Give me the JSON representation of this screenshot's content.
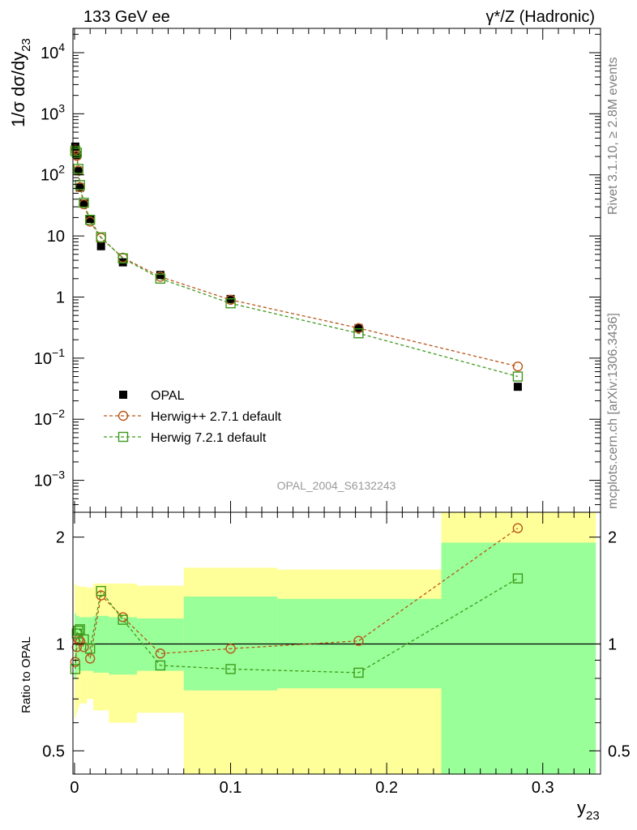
{
  "header": {
    "left": "133 GeV ee",
    "right": "γ*/Z (Hadronic)"
  },
  "side_labels": {
    "rivet": "Rivet 3.1.10, ≥ 2.8M events",
    "mcplots": "mcplots.cern.ch [arXiv:1306.3436]"
  },
  "colors": {
    "data": "#000000",
    "herwigpp": "#b8561a",
    "herwig7": "#3f9a1c",
    "band_yellow": "#ffff99",
    "band_green": "#99ff99"
  },
  "chart_data": [
    {
      "type": "scatter",
      "panel": "main",
      "ylabel": "1/σ dσ/dy23",
      "yscale": "log",
      "ylim": [
        0.0003,
        25000
      ],
      "xlim": [
        -0.001,
        0.337
      ],
      "watermark": "OPAL_2004_S6132243",
      "legend_position": "lower-left",
      "y_ticks": [
        {
          "v": 0.001,
          "base": "10",
          "exp": "−3"
        },
        {
          "v": 0.01,
          "base": "10",
          "exp": "−2"
        },
        {
          "v": 0.1,
          "base": "10",
          "exp": "−1"
        },
        {
          "v": 1,
          "base": "1",
          "exp": ""
        },
        {
          "v": 10,
          "base": "10",
          "exp": ""
        },
        {
          "v": 100,
          "base": "10",
          "exp": "2"
        },
        {
          "v": 1000,
          "base": "10",
          "exp": "3"
        },
        {
          "v": 10000,
          "base": "10",
          "exp": "4"
        }
      ],
      "series": [
        {
          "name": "OPAL",
          "style": "data",
          "x": [
            0.0005,
            0.0015,
            0.0025,
            0.0035,
            0.006,
            0.01,
            0.017,
            0.031,
            0.055,
            0.1,
            0.182,
            0.284
          ],
          "values": [
            290,
            210,
            115,
            62,
            34,
            19,
            6.8,
            3.7,
            2.3,
            0.93,
            0.31,
            0.034
          ]
        },
        {
          "name": "Herwig++ 2.7.1 default",
          "style": "circle",
          "x": [
            0.0005,
            0.0015,
            0.0025,
            0.0035,
            0.006,
            0.01,
            0.017,
            0.031,
            0.055,
            0.1,
            0.182,
            0.284
          ],
          "values": [
            258,
            205,
            118,
            63,
            33,
            17.2,
            9.3,
            4.4,
            2.15,
            0.9,
            0.31,
            0.073
          ]
        },
        {
          "name": "Herwig 7.2.1 default",
          "style": "square",
          "x": [
            0.0005,
            0.0015,
            0.0025,
            0.0035,
            0.006,
            0.01,
            0.017,
            0.031,
            0.055,
            0.1,
            0.182,
            0.284
          ],
          "values": [
            247,
            230,
            125,
            68,
            35,
            18.4,
            9.5,
            4.3,
            2.0,
            0.79,
            0.255,
            0.05
          ]
        }
      ]
    },
    {
      "type": "line",
      "panel": "ratio",
      "ylabel": "Ratio to OPAL",
      "xlabel": "y23",
      "yscale": "log",
      "ylim": [
        0.43,
        2.35
      ],
      "xlim": [
        -0.001,
        0.337
      ],
      "x_ticks": [
        {
          "v": 0,
          "label": "0"
        },
        {
          "v": 0.1,
          "label": "0.1"
        },
        {
          "v": 0.2,
          "label": "0.2"
        },
        {
          "v": 0.3,
          "label": "0.3"
        }
      ],
      "y_ticks": [
        {
          "v": 0.5,
          "label": "0.5"
        },
        {
          "v": 1,
          "label": "1"
        },
        {
          "v": 2,
          "label": "2"
        }
      ],
      "bands": [
        {
          "x0": 0.0,
          "x1": 0.001,
          "y_lo": 0.62,
          "y_hi": 1.48,
          "g_lo": 0.8,
          "g_hi": 1.22
        },
        {
          "x0": 0.001,
          "x1": 0.002,
          "y_lo": 0.64,
          "y_hi": 1.46,
          "g_lo": 0.82,
          "g_hi": 1.2
        },
        {
          "x0": 0.002,
          "x1": 0.003,
          "y_lo": 0.66,
          "y_hi": 1.46,
          "g_lo": 0.84,
          "g_hi": 1.2
        },
        {
          "x0": 0.003,
          "x1": 0.004,
          "y_lo": 0.68,
          "y_hi": 1.45,
          "g_lo": 0.84,
          "g_hi": 1.19
        },
        {
          "x0": 0.004,
          "x1": 0.008,
          "y_lo": 0.68,
          "y_hi": 1.45,
          "g_lo": 0.84,
          "g_hi": 1.19
        },
        {
          "x0": 0.008,
          "x1": 0.012,
          "y_lo": 0.7,
          "y_hi": 1.44,
          "g_lo": 0.84,
          "g_hi": 1.19
        },
        {
          "x0": 0.012,
          "x1": 0.022,
          "y_lo": 0.65,
          "y_hi": 1.48,
          "g_lo": 0.83,
          "g_hi": 1.2
        },
        {
          "x0": 0.022,
          "x1": 0.04,
          "y_lo": 0.6,
          "y_hi": 1.48,
          "g_lo": 0.82,
          "g_hi": 1.19
        },
        {
          "x0": 0.04,
          "x1": 0.07,
          "y_lo": 0.64,
          "y_hi": 1.46,
          "g_lo": 0.84,
          "g_hi": 1.18
        },
        {
          "x0": 0.07,
          "x1": 0.13,
          "y_lo": 0.3,
          "y_hi": 1.64,
          "g_lo": 0.74,
          "g_hi": 1.36
        },
        {
          "x0": 0.13,
          "x1": 0.235,
          "y_lo": 0.36,
          "y_hi": 1.62,
          "g_lo": 0.75,
          "g_hi": 1.34
        },
        {
          "x0": 0.235,
          "x1": 0.334,
          "y_lo": 0.3,
          "y_hi": 3.0,
          "g_lo": 0.3,
          "g_hi": 1.93
        }
      ],
      "series": [
        {
          "name": "Herwig++ 2.7.1 default",
          "style": "circle",
          "x": [
            0.0005,
            0.0015,
            0.0025,
            0.0035,
            0.006,
            0.01,
            0.017,
            0.031,
            0.055,
            0.1,
            0.182,
            0.284
          ],
          "values": [
            0.89,
            0.98,
            1.03,
            1.02,
            0.98,
            0.91,
            1.37,
            1.19,
            0.94,
            0.97,
            1.02,
            2.12
          ]
        },
        {
          "name": "Herwig 7.2.1 default",
          "style": "square",
          "x": [
            0.0005,
            0.0015,
            0.0025,
            0.0035,
            0.006,
            0.01,
            0.017,
            0.031,
            0.055,
            0.1,
            0.182,
            0.284
          ],
          "values": [
            0.85,
            1.07,
            1.09,
            1.1,
            1.03,
            0.97,
            1.41,
            1.17,
            0.87,
            0.85,
            0.83,
            1.53
          ]
        }
      ]
    }
  ]
}
